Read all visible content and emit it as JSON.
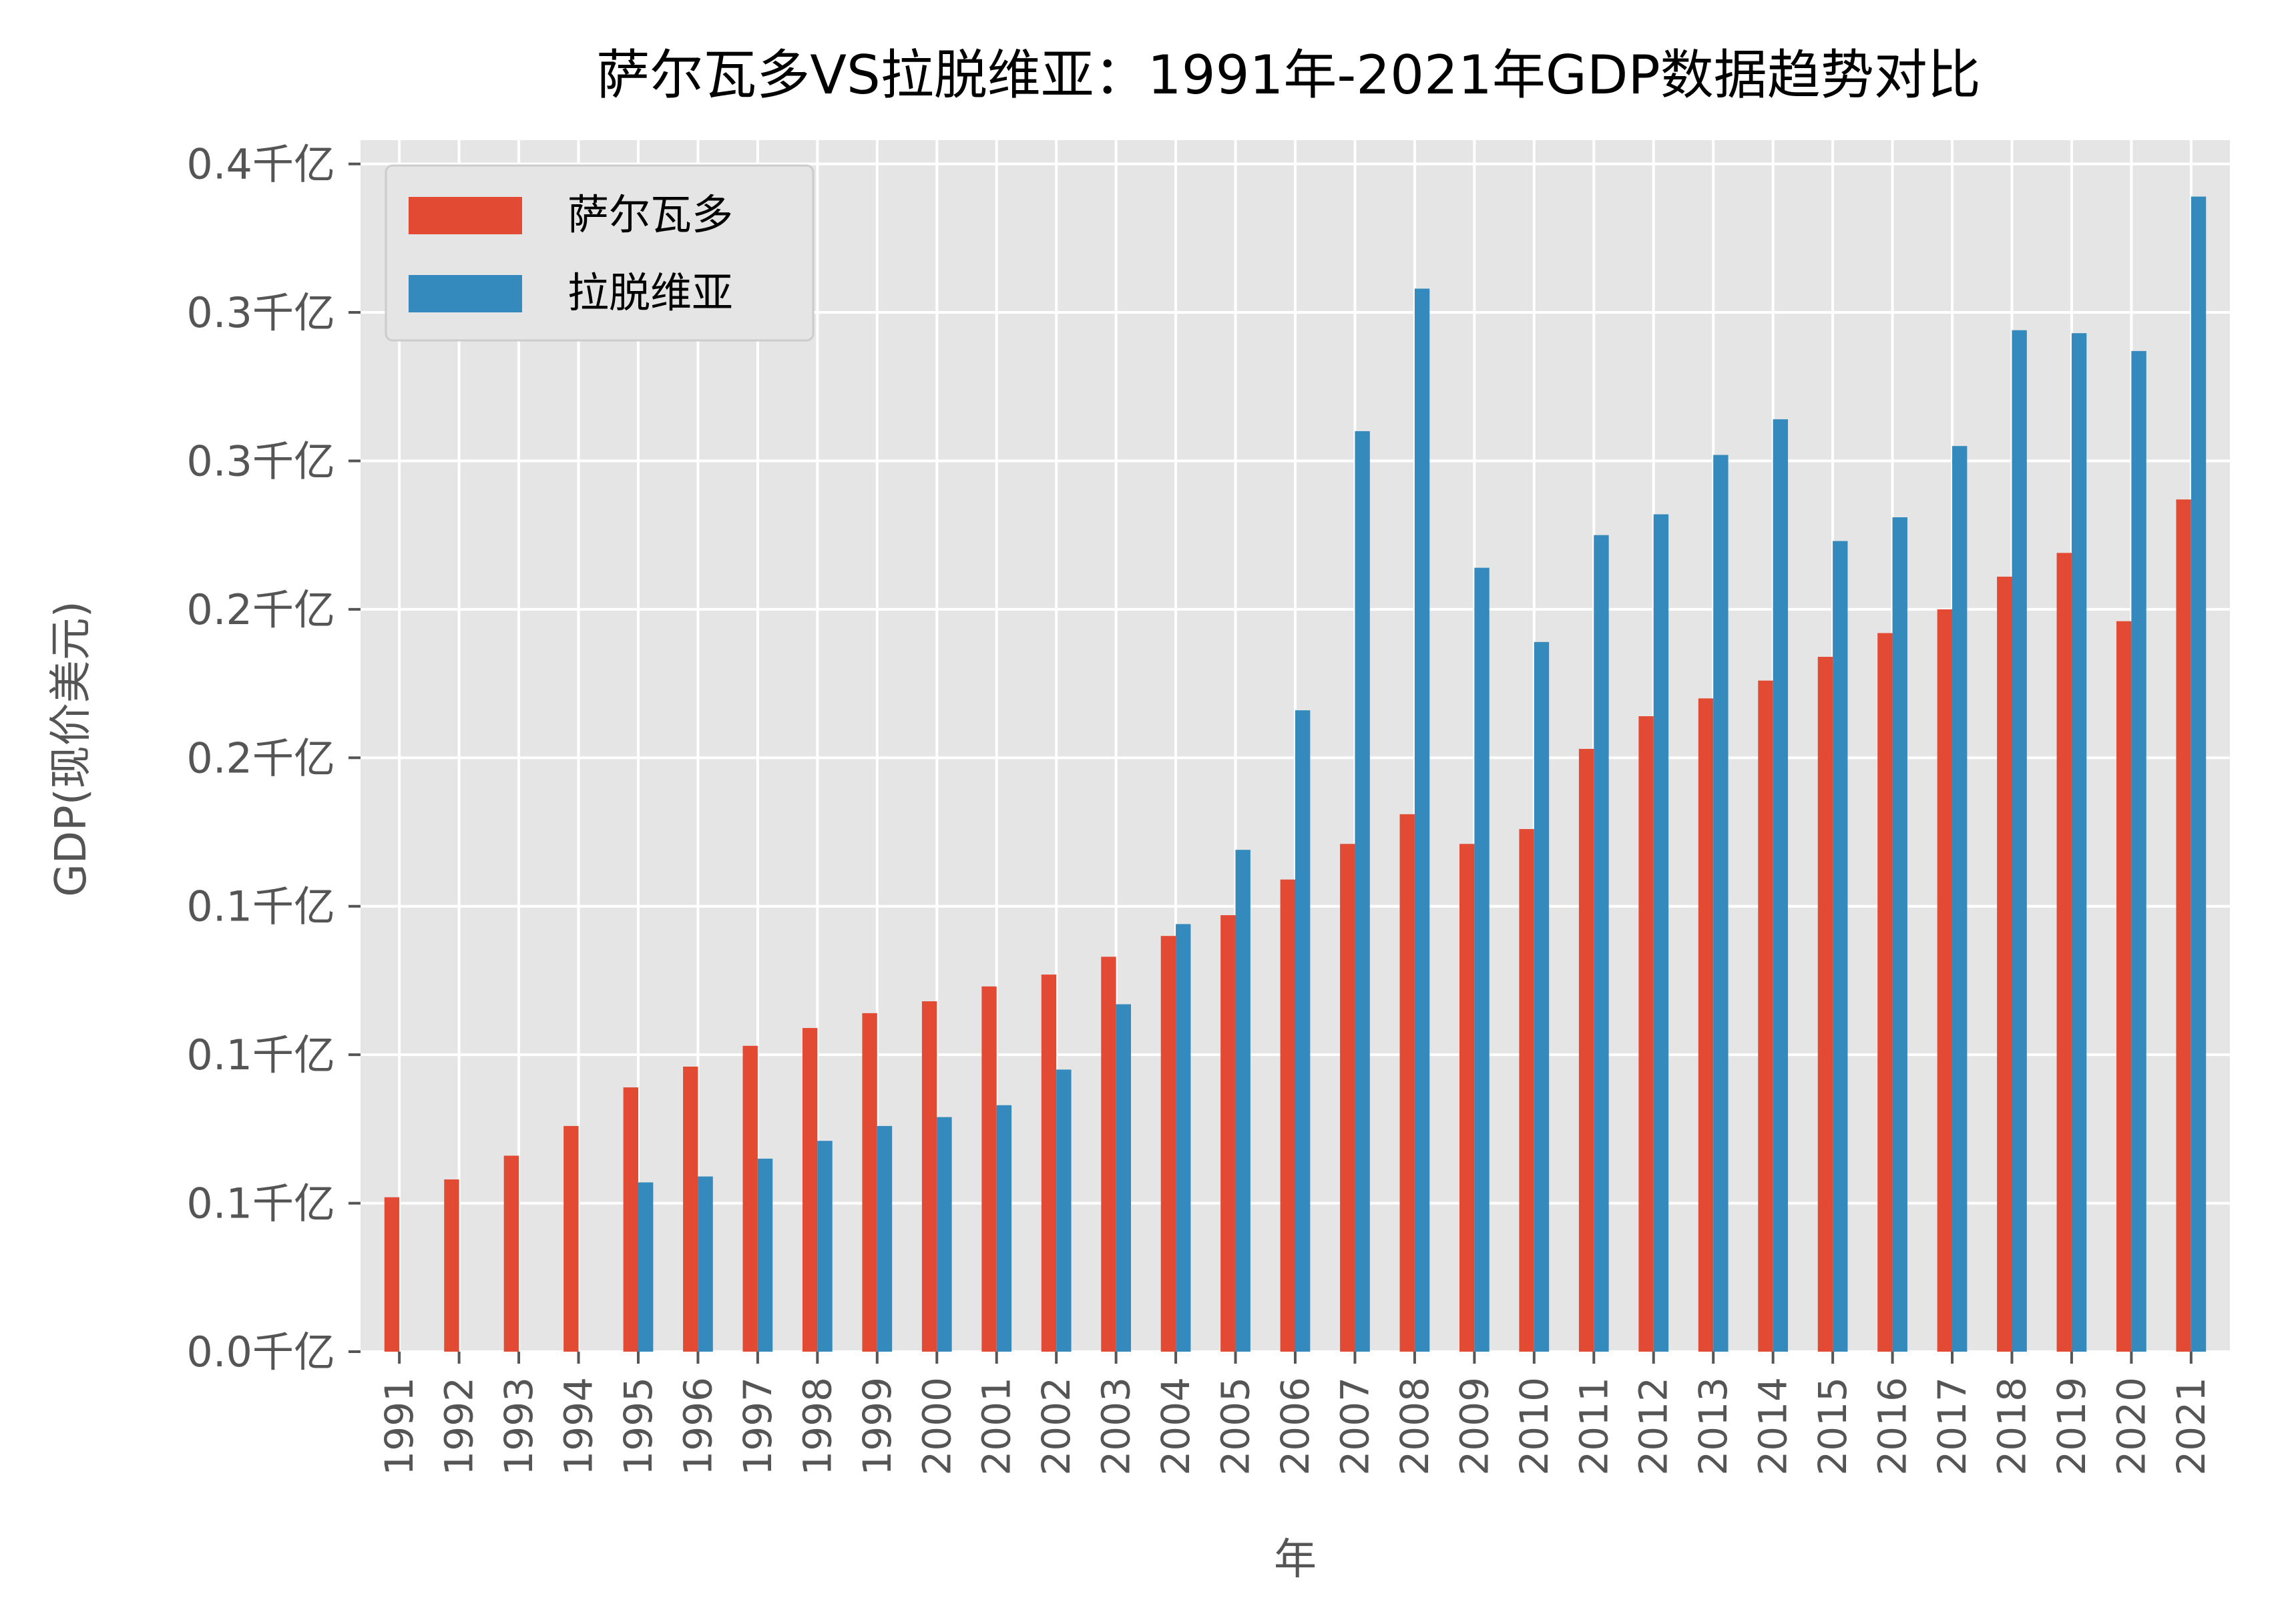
{
  "chart_data": {
    "type": "bar",
    "title": "萨尔瓦多VS拉脱维亚：1991年-2021年GDP数据趋势对比",
    "xlabel": "年",
    "ylabel": "GDP(现价美元)",
    "categories": [
      "1991",
      "1992",
      "1993",
      "1994",
      "1995",
      "1996",
      "1997",
      "1998",
      "1999",
      "2000",
      "2001",
      "2002",
      "2003",
      "2004",
      "2005",
      "2006",
      "2007",
      "2008",
      "2009",
      "2010",
      "2011",
      "2012",
      "2013",
      "2014",
      "2015",
      "2016",
      "2017",
      "2018",
      "2019",
      "2020",
      "2021"
    ],
    "y_ticks": [
      {
        "value": 0,
        "label": "0.0千亿"
      },
      {
        "value": 5000000000,
        "label": "0.1千亿"
      },
      {
        "value": 10000000000,
        "label": "0.1千亿"
      },
      {
        "value": 15000000000,
        "label": "0.1千亿"
      },
      {
        "value": 20000000000,
        "label": "0.2千亿"
      },
      {
        "value": 25000000000,
        "label": "0.2千亿"
      },
      {
        "value": 30000000000,
        "label": "0.3千亿"
      },
      {
        "value": 35000000000,
        "label": "0.3千亿"
      },
      {
        "value": 40000000000,
        "label": "0.4千亿"
      }
    ],
    "ylim": [
      0,
      40800000000
    ],
    "grid": true,
    "legend_position": "top-left",
    "series": [
      {
        "name": "萨尔瓦多",
        "color": "#E24A33",
        "values": [
          5200000000,
          5800000000,
          6600000000,
          7600000000,
          8900000000,
          9600000000,
          10300000000,
          10900000000,
          11400000000,
          11800000000,
          12300000000,
          12700000000,
          13300000000,
          14000000000,
          14700000000,
          15900000000,
          17100000000,
          18100000000,
          17100000000,
          17600000000,
          20300000000,
          21400000000,
          22000000000,
          22600000000,
          23400000000,
          24200000000,
          25000000000,
          26100000000,
          26900000000,
          24600000000,
          28700000000
        ]
      },
      {
        "name": "拉脱维亚",
        "color": "#348ABD",
        "values": [
          0,
          0,
          0,
          0,
          5700000000,
          5900000000,
          6500000000,
          7100000000,
          7600000000,
          7900000000,
          8300000000,
          9500000000,
          11700000000,
          14400000000,
          16900000000,
          21600000000,
          31000000000,
          35800000000,
          26400000000,
          23900000000,
          27500000000,
          28200000000,
          30200000000,
          31400000000,
          27300000000,
          28100000000,
          30500000000,
          34400000000,
          34300000000,
          33700000000,
          38900000000
        ]
      }
    ]
  },
  "colors": {
    "plot_background": "#E5E5E5",
    "grid": "#FFFFFF",
    "text": "#555555",
    "title": "#000000"
  }
}
